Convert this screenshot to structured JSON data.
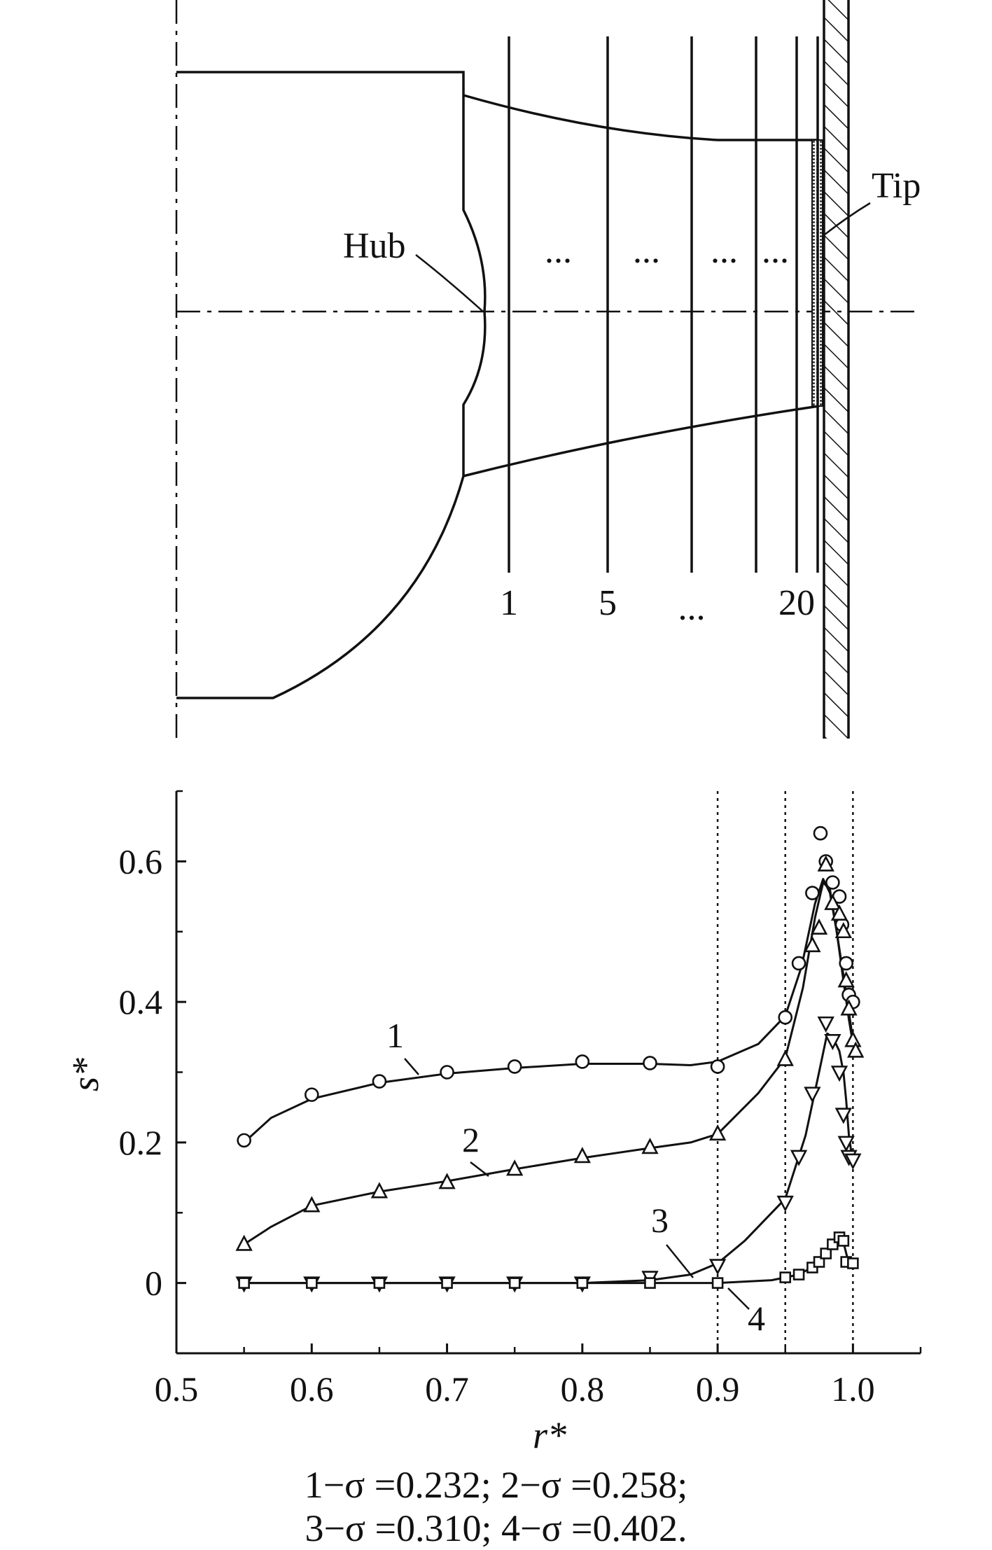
{
  "diagram": {
    "hub_label": "Hub",
    "tip_label": "Tip",
    "dots": [
      "...",
      "...",
      "...",
      "..."
    ],
    "station_labels": [
      "1",
      "5",
      "...",
      "20"
    ]
  },
  "chart_data": {
    "type": "scatter",
    "xlabel": "r*",
    "ylabel": "s*",
    "xlim": [
      0.5,
      1.05
    ],
    "ylim": [
      -0.1,
      0.7
    ],
    "xticks": [
      "0.5",
      "0.6",
      "0.7",
      "0.8",
      "0.9",
      "1.0"
    ],
    "xtick_values": [
      0.5,
      0.6,
      0.7,
      0.8,
      0.9,
      1.0
    ],
    "yticks": [
      "0",
      "0.2",
      "0.4",
      "0.6"
    ],
    "ytick_values": [
      0,
      0.2,
      0.4,
      0.6
    ],
    "vertical_dotted_lines": [
      0.9,
      0.95,
      1.0
    ],
    "series": [
      {
        "name": "1",
        "marker": "circle",
        "points": [
          [
            0.55,
            0.203
          ],
          [
            0.6,
            0.268
          ],
          [
            0.65,
            0.287
          ],
          [
            0.7,
            0.3
          ],
          [
            0.75,
            0.308
          ],
          [
            0.8,
            0.315
          ],
          [
            0.85,
            0.313
          ],
          [
            0.9,
            0.308
          ],
          [
            0.95,
            0.378
          ],
          [
            0.96,
            0.455
          ],
          [
            0.97,
            0.555
          ],
          [
            0.976,
            0.64
          ],
          [
            0.98,
            0.6
          ],
          [
            0.985,
            0.57
          ],
          [
            0.99,
            0.55
          ],
          [
            0.992,
            0.51
          ],
          [
            0.995,
            0.455
          ],
          [
            0.997,
            0.41
          ],
          [
            1.0,
            0.4
          ]
        ],
        "curve": [
          [
            0.55,
            0.2
          ],
          [
            0.57,
            0.235
          ],
          [
            0.6,
            0.262
          ],
          [
            0.65,
            0.285
          ],
          [
            0.7,
            0.298
          ],
          [
            0.75,
            0.306
          ],
          [
            0.8,
            0.312
          ],
          [
            0.85,
            0.312
          ],
          [
            0.88,
            0.31
          ],
          [
            0.9,
            0.315
          ],
          [
            0.93,
            0.34
          ],
          [
            0.95,
            0.38
          ],
          [
            0.962,
            0.45
          ],
          [
            0.972,
            0.54
          ],
          [
            0.978,
            0.575
          ],
          [
            0.983,
            0.555
          ],
          [
            0.988,
            0.5
          ],
          [
            0.992,
            0.45
          ],
          [
            0.996,
            0.4
          ],
          [
            1.0,
            0.345
          ]
        ]
      },
      {
        "name": "2",
        "marker": "triangle-up",
        "points": [
          [
            0.55,
            0.055
          ],
          [
            0.6,
            0.11
          ],
          [
            0.65,
            0.13
          ],
          [
            0.7,
            0.143
          ],
          [
            0.75,
            0.162
          ],
          [
            0.8,
            0.18
          ],
          [
            0.85,
            0.193
          ],
          [
            0.9,
            0.212
          ],
          [
            0.95,
            0.318
          ],
          [
            0.97,
            0.48
          ],
          [
            0.975,
            0.505
          ],
          [
            0.98,
            0.595
          ],
          [
            0.985,
            0.54
          ],
          [
            0.99,
            0.525
          ],
          [
            0.993,
            0.5
          ],
          [
            0.995,
            0.43
          ],
          [
            0.997,
            0.39
          ],
          [
            1.0,
            0.345
          ],
          [
            1.002,
            0.33
          ]
        ],
        "curve": [
          [
            0.55,
            0.055
          ],
          [
            0.57,
            0.08
          ],
          [
            0.6,
            0.11
          ],
          [
            0.65,
            0.13
          ],
          [
            0.7,
            0.145
          ],
          [
            0.75,
            0.162
          ],
          [
            0.8,
            0.178
          ],
          [
            0.85,
            0.192
          ],
          [
            0.88,
            0.2
          ],
          [
            0.9,
            0.212
          ],
          [
            0.93,
            0.27
          ],
          [
            0.95,
            0.32
          ],
          [
            0.963,
            0.42
          ],
          [
            0.972,
            0.52
          ],
          [
            0.978,
            0.57
          ],
          [
            0.983,
            0.56
          ],
          [
            0.988,
            0.5
          ],
          [
            0.993,
            0.43
          ],
          [
            0.997,
            0.375
          ],
          [
            1.0,
            0.34
          ]
        ]
      },
      {
        "name": "3",
        "marker": "triangle-down",
        "points": [
          [
            0.55,
            0.0
          ],
          [
            0.6,
            0.0
          ],
          [
            0.65,
            0.0
          ],
          [
            0.7,
            0.0
          ],
          [
            0.75,
            0.0
          ],
          [
            0.8,
            0.0
          ],
          [
            0.85,
            0.008
          ],
          [
            0.9,
            0.025
          ],
          [
            0.95,
            0.115
          ],
          [
            0.96,
            0.18
          ],
          [
            0.97,
            0.27
          ],
          [
            0.98,
            0.37
          ],
          [
            0.985,
            0.345
          ],
          [
            0.99,
            0.3
          ],
          [
            0.993,
            0.24
          ],
          [
            0.995,
            0.2
          ],
          [
            0.997,
            0.18
          ],
          [
            1.0,
            0.175
          ]
        ],
        "curve": [
          [
            0.55,
            0.0
          ],
          [
            0.7,
            0.0
          ],
          [
            0.8,
            0.0
          ],
          [
            0.85,
            0.004
          ],
          [
            0.88,
            0.012
          ],
          [
            0.9,
            0.028
          ],
          [
            0.92,
            0.06
          ],
          [
            0.95,
            0.12
          ],
          [
            0.965,
            0.21
          ],
          [
            0.975,
            0.3
          ],
          [
            0.981,
            0.355
          ],
          [
            0.985,
            0.35
          ],
          [
            0.99,
            0.33
          ],
          [
            0.993,
            0.3
          ],
          [
            0.995,
            0.26
          ],
          [
            0.997,
            0.21
          ],
          [
            1.0,
            0.17
          ]
        ]
      },
      {
        "name": "4",
        "marker": "square",
        "points": [
          [
            0.55,
            0.0
          ],
          [
            0.6,
            0.0
          ],
          [
            0.65,
            0.0
          ],
          [
            0.7,
            0.0
          ],
          [
            0.75,
            0.0
          ],
          [
            0.8,
            0.0
          ],
          [
            0.85,
            0.0
          ],
          [
            0.9,
            0.0
          ],
          [
            0.95,
            0.008
          ],
          [
            0.96,
            0.012
          ],
          [
            0.97,
            0.022
          ],
          [
            0.975,
            0.03
          ],
          [
            0.98,
            0.042
          ],
          [
            0.985,
            0.055
          ],
          [
            0.99,
            0.065
          ],
          [
            0.993,
            0.06
          ],
          [
            0.995,
            0.03
          ],
          [
            1.0,
            0.028
          ]
        ],
        "curve": [
          [
            0.55,
            0.0
          ],
          [
            0.9,
            0.0
          ],
          [
            0.94,
            0.004
          ],
          [
            0.96,
            0.012
          ],
          [
            0.975,
            0.028
          ],
          [
            0.985,
            0.05
          ],
          [
            0.99,
            0.062
          ],
          [
            0.993,
            0.058
          ],
          [
            0.996,
            0.035
          ],
          [
            1.0,
            0.03
          ]
        ]
      }
    ],
    "curve_labels": [
      "1",
      "2",
      "3",
      "4"
    ]
  },
  "caption": {
    "line1": "1−σ =0.232; 2−σ =0.258;",
    "line2": "3−σ =0.310; 4−σ =0.402."
  }
}
